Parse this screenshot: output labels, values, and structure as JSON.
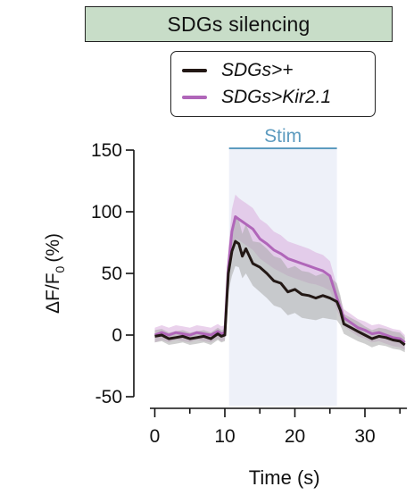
{
  "colors": {
    "control_line": "#231815",
    "control_band": "#a8a8a8",
    "kir_line": "#b066b9",
    "kir_band": "#dcb4e0",
    "stim_shade": "#eef1f9",
    "stim_bar": "#5d9bbf",
    "title_bg": "#c8ddc8"
  },
  "chart_data": {
    "type": "line",
    "title": "SDGs silencing",
    "xlabel": "Time (s)",
    "ylabel_main": "ΔF/F",
    "ylabel_sub": "0",
    "ylabel_unit": "(%)",
    "xlim": [
      -1,
      36
    ],
    "ylim": [
      -50,
      150
    ],
    "xticks": [
      0,
      10,
      20,
      30
    ],
    "yticks": [
      -50,
      0,
      50,
      100,
      150
    ],
    "grid": false,
    "legend_position": "top-right",
    "stim": {
      "label": "Stim",
      "start": 10,
      "end": 26
    },
    "series": [
      {
        "name": "SDGs>+",
        "x": [
          0,
          1,
          2,
          3,
          4,
          5,
          6,
          7,
          8,
          9,
          9.5,
          10,
          10.5,
          11,
          11.5,
          12,
          12.5,
          13,
          14,
          15,
          16,
          17,
          18,
          19,
          20,
          21,
          22,
          23,
          24,
          25,
          26,
          26.5,
          27,
          28,
          29,
          30,
          31,
          32,
          33,
          34,
          35,
          35.7
        ],
        "y": [
          -1,
          0,
          -3,
          -2,
          -1,
          -3,
          -2,
          -1,
          -3,
          1,
          -1,
          0,
          50,
          68,
          76,
          74,
          64,
          70,
          58,
          55,
          50,
          44,
          42,
          35,
          37,
          33,
          32,
          30,
          32,
          30,
          27,
          20,
          9,
          6,
          3,
          0,
          -3,
          -1,
          -2,
          -4,
          -5,
          -8
        ],
        "lower": [
          -6,
          -5,
          -8,
          -7,
          -6,
          -8,
          -7,
          -6,
          -8,
          -4,
          -6,
          -5,
          35,
          48,
          56,
          55,
          46,
          50,
          40,
          35,
          30,
          24,
          22,
          16,
          18,
          14,
          13,
          12,
          14,
          13,
          12,
          8,
          1,
          -2,
          -5,
          -7,
          -10,
          -8,
          -9,
          -11,
          -12,
          -14
        ],
        "upper": [
          4,
          5,
          2,
          3,
          4,
          2,
          3,
          4,
          2,
          6,
          4,
          5,
          65,
          88,
          96,
          93,
          82,
          90,
          76,
          75,
          70,
          64,
          62,
          54,
          56,
          52,
          51,
          48,
          50,
          47,
          42,
          32,
          17,
          14,
          11,
          7,
          4,
          6,
          5,
          3,
          2,
          -2
        ]
      },
      {
        "name": "SDGs>Kir2.1",
        "x": [
          0,
          1,
          2,
          3,
          4,
          5,
          6,
          7,
          8,
          9,
          9.5,
          10,
          10.5,
          11,
          11.5,
          12,
          12.5,
          13,
          14,
          15,
          16,
          17,
          18,
          19,
          20,
          21,
          22,
          23,
          24,
          25,
          26,
          26.5,
          27,
          28,
          29,
          30,
          31,
          32,
          33,
          34,
          35,
          35.7
        ],
        "y": [
          0,
          2,
          0,
          2,
          1,
          0,
          2,
          1,
          0,
          3,
          1,
          2,
          55,
          84,
          96,
          94,
          92,
          90,
          86,
          78,
          74,
          69,
          66,
          62,
          60,
          58,
          56,
          54,
          52,
          48,
          30,
          22,
          14,
          10,
          6,
          4,
          1,
          2,
          0,
          -2,
          -3,
          -6
        ],
        "lower": [
          -6,
          -4,
          -6,
          -4,
          -5,
          -6,
          -4,
          -5,
          -6,
          -3,
          -5,
          -4,
          40,
          66,
          78,
          77,
          75,
          73,
          69,
          62,
          58,
          54,
          51,
          48,
          46,
          44,
          42,
          41,
          39,
          36,
          20,
          14,
          7,
          3,
          -1,
          -3,
          -6,
          -5,
          -7,
          -9,
          -10,
          -12
        ],
        "upper": [
          6,
          8,
          6,
          8,
          7,
          6,
          8,
          7,
          6,
          9,
          7,
          8,
          70,
          102,
          114,
          111,
          109,
          107,
          103,
          94,
          90,
          84,
          81,
          76,
          74,
          72,
          70,
          67,
          65,
          60,
          40,
          30,
          21,
          17,
          13,
          11,
          8,
          9,
          7,
          5,
          4,
          0
        ]
      }
    ]
  }
}
